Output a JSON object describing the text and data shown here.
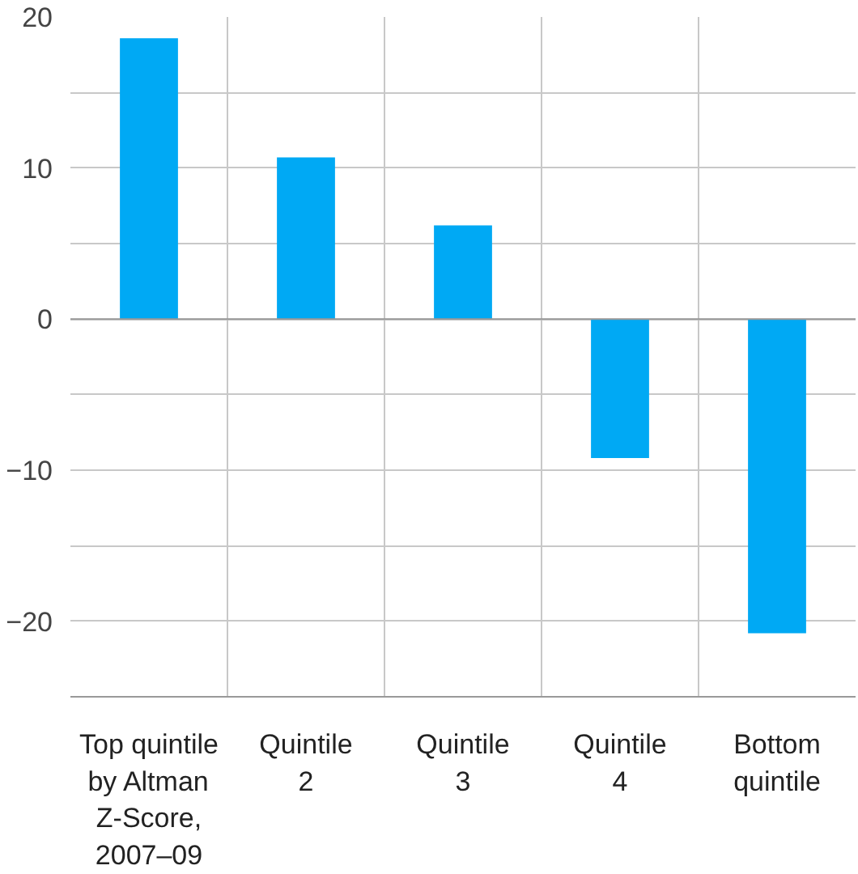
{
  "chart_data": {
    "type": "bar",
    "categories": [
      "Top quintile\nby Altman\nZ-Score,\n2007–09",
      "Quintile\n2",
      "Quintile\n3",
      "Quintile\n4",
      "Bottom\nquintile"
    ],
    "values": [
      18.6,
      10.7,
      6.2,
      -9.2,
      -20.8
    ],
    "color": "#00a9f4",
    "ylim": [
      -25,
      20
    ],
    "yticks": [
      {
        "value": -25,
        "label": null
      },
      {
        "value": -20,
        "label": "−20"
      },
      {
        "value": -15,
        "label": null
      },
      {
        "value": -10,
        "label": "−10"
      },
      {
        "value": -5,
        "label": null
      },
      0,
      {
        "value": 5,
        "label": null
      },
      10,
      {
        "value": 15,
        "label": null
      },
      20
    ],
    "grid": true
  }
}
